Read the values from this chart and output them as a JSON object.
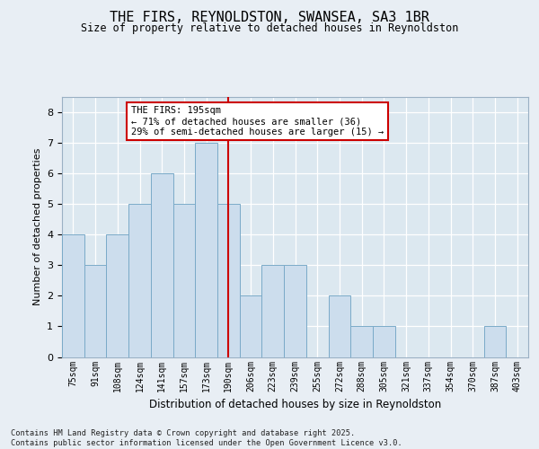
{
  "title_line1": "THE FIRS, REYNOLDSTON, SWANSEA, SA3 1BR",
  "title_line2": "Size of property relative to detached houses in Reynoldston",
  "xlabel": "Distribution of detached houses by size in Reynoldston",
  "ylabel": "Number of detached properties",
  "categories": [
    "75sqm",
    "91sqm",
    "108sqm",
    "124sqm",
    "141sqm",
    "157sqm",
    "173sqm",
    "190sqm",
    "206sqm",
    "223sqm",
    "239sqm",
    "255sqm",
    "272sqm",
    "288sqm",
    "305sqm",
    "321sqm",
    "337sqm",
    "354sqm",
    "370sqm",
    "387sqm",
    "403sqm"
  ],
  "values": [
    4,
    3,
    4,
    5,
    6,
    5,
    7,
    5,
    2,
    3,
    3,
    0,
    2,
    1,
    1,
    0,
    0,
    0,
    0,
    1,
    0
  ],
  "highlight_index": 7,
  "bar_color": "#ccdded",
  "bar_edge_color": "#7aaac8",
  "highlight_line_color": "#cc0000",
  "annotation_text": "THE FIRS: 195sqm\n← 71% of detached houses are smaller (36)\n29% of semi-detached houses are larger (15) →",
  "annotation_box_facecolor": "#ffffff",
  "annotation_box_edgecolor": "#cc0000",
  "ylim": [
    0,
    8.5
  ],
  "yticks": [
    0,
    1,
    2,
    3,
    4,
    5,
    6,
    7,
    8
  ],
  "footer_text": "Contains HM Land Registry data © Crown copyright and database right 2025.\nContains public sector information licensed under the Open Government Licence v3.0.",
  "fig_bg_color": "#e8eef4",
  "plot_bg_color": "#dce8f0"
}
